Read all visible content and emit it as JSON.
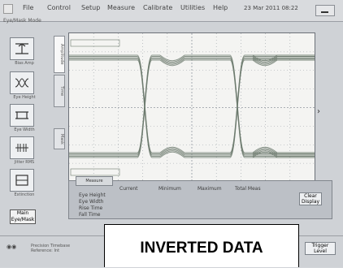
{
  "menubar": {
    "items": [
      "File",
      "Control",
      "Setup",
      "Measure",
      "Calibrate",
      "Utilities",
      "Help"
    ],
    "datetime": "23 Mar 2011 08:22"
  },
  "sidebar": {
    "title": "Eye/Mask Mode",
    "buttons": [
      {
        "label": "Bias Amp",
        "icon": "eye-amplitude-icon"
      },
      {
        "label": "Eye Height",
        "icon": "eye-height-icon"
      },
      {
        "label": "Eye Width",
        "icon": "eye-width-icon"
      },
      {
        "label": "Jitter RMS",
        "icon": "jitter-icon"
      },
      {
        "label": "Extinction",
        "icon": "extinction-icon"
      }
    ],
    "main_button": "Main\nEye/Mask"
  },
  "tabs": [
    "Amplitude",
    "Time",
    "Mask"
  ],
  "measurements": {
    "tab_label": "Measure",
    "columns": [
      "Current",
      "Minimum",
      "Maximum",
      "Total Meas"
    ],
    "rows": [
      "Eye Height",
      "Eye Width",
      "Rise Time",
      "Fall Time"
    ],
    "clear_label": "Clear\nDisplay"
  },
  "footer": {
    "vendor": "Precision Timebase",
    "vendor_sub": "Reference: Int",
    "button_label": "Trigger\nLevel"
  },
  "caption": "INVERTED DATA",
  "colors": {
    "trace": "#6d7a6e",
    "grid": "#9aa0a7",
    "background": "#f4f4f2"
  }
}
